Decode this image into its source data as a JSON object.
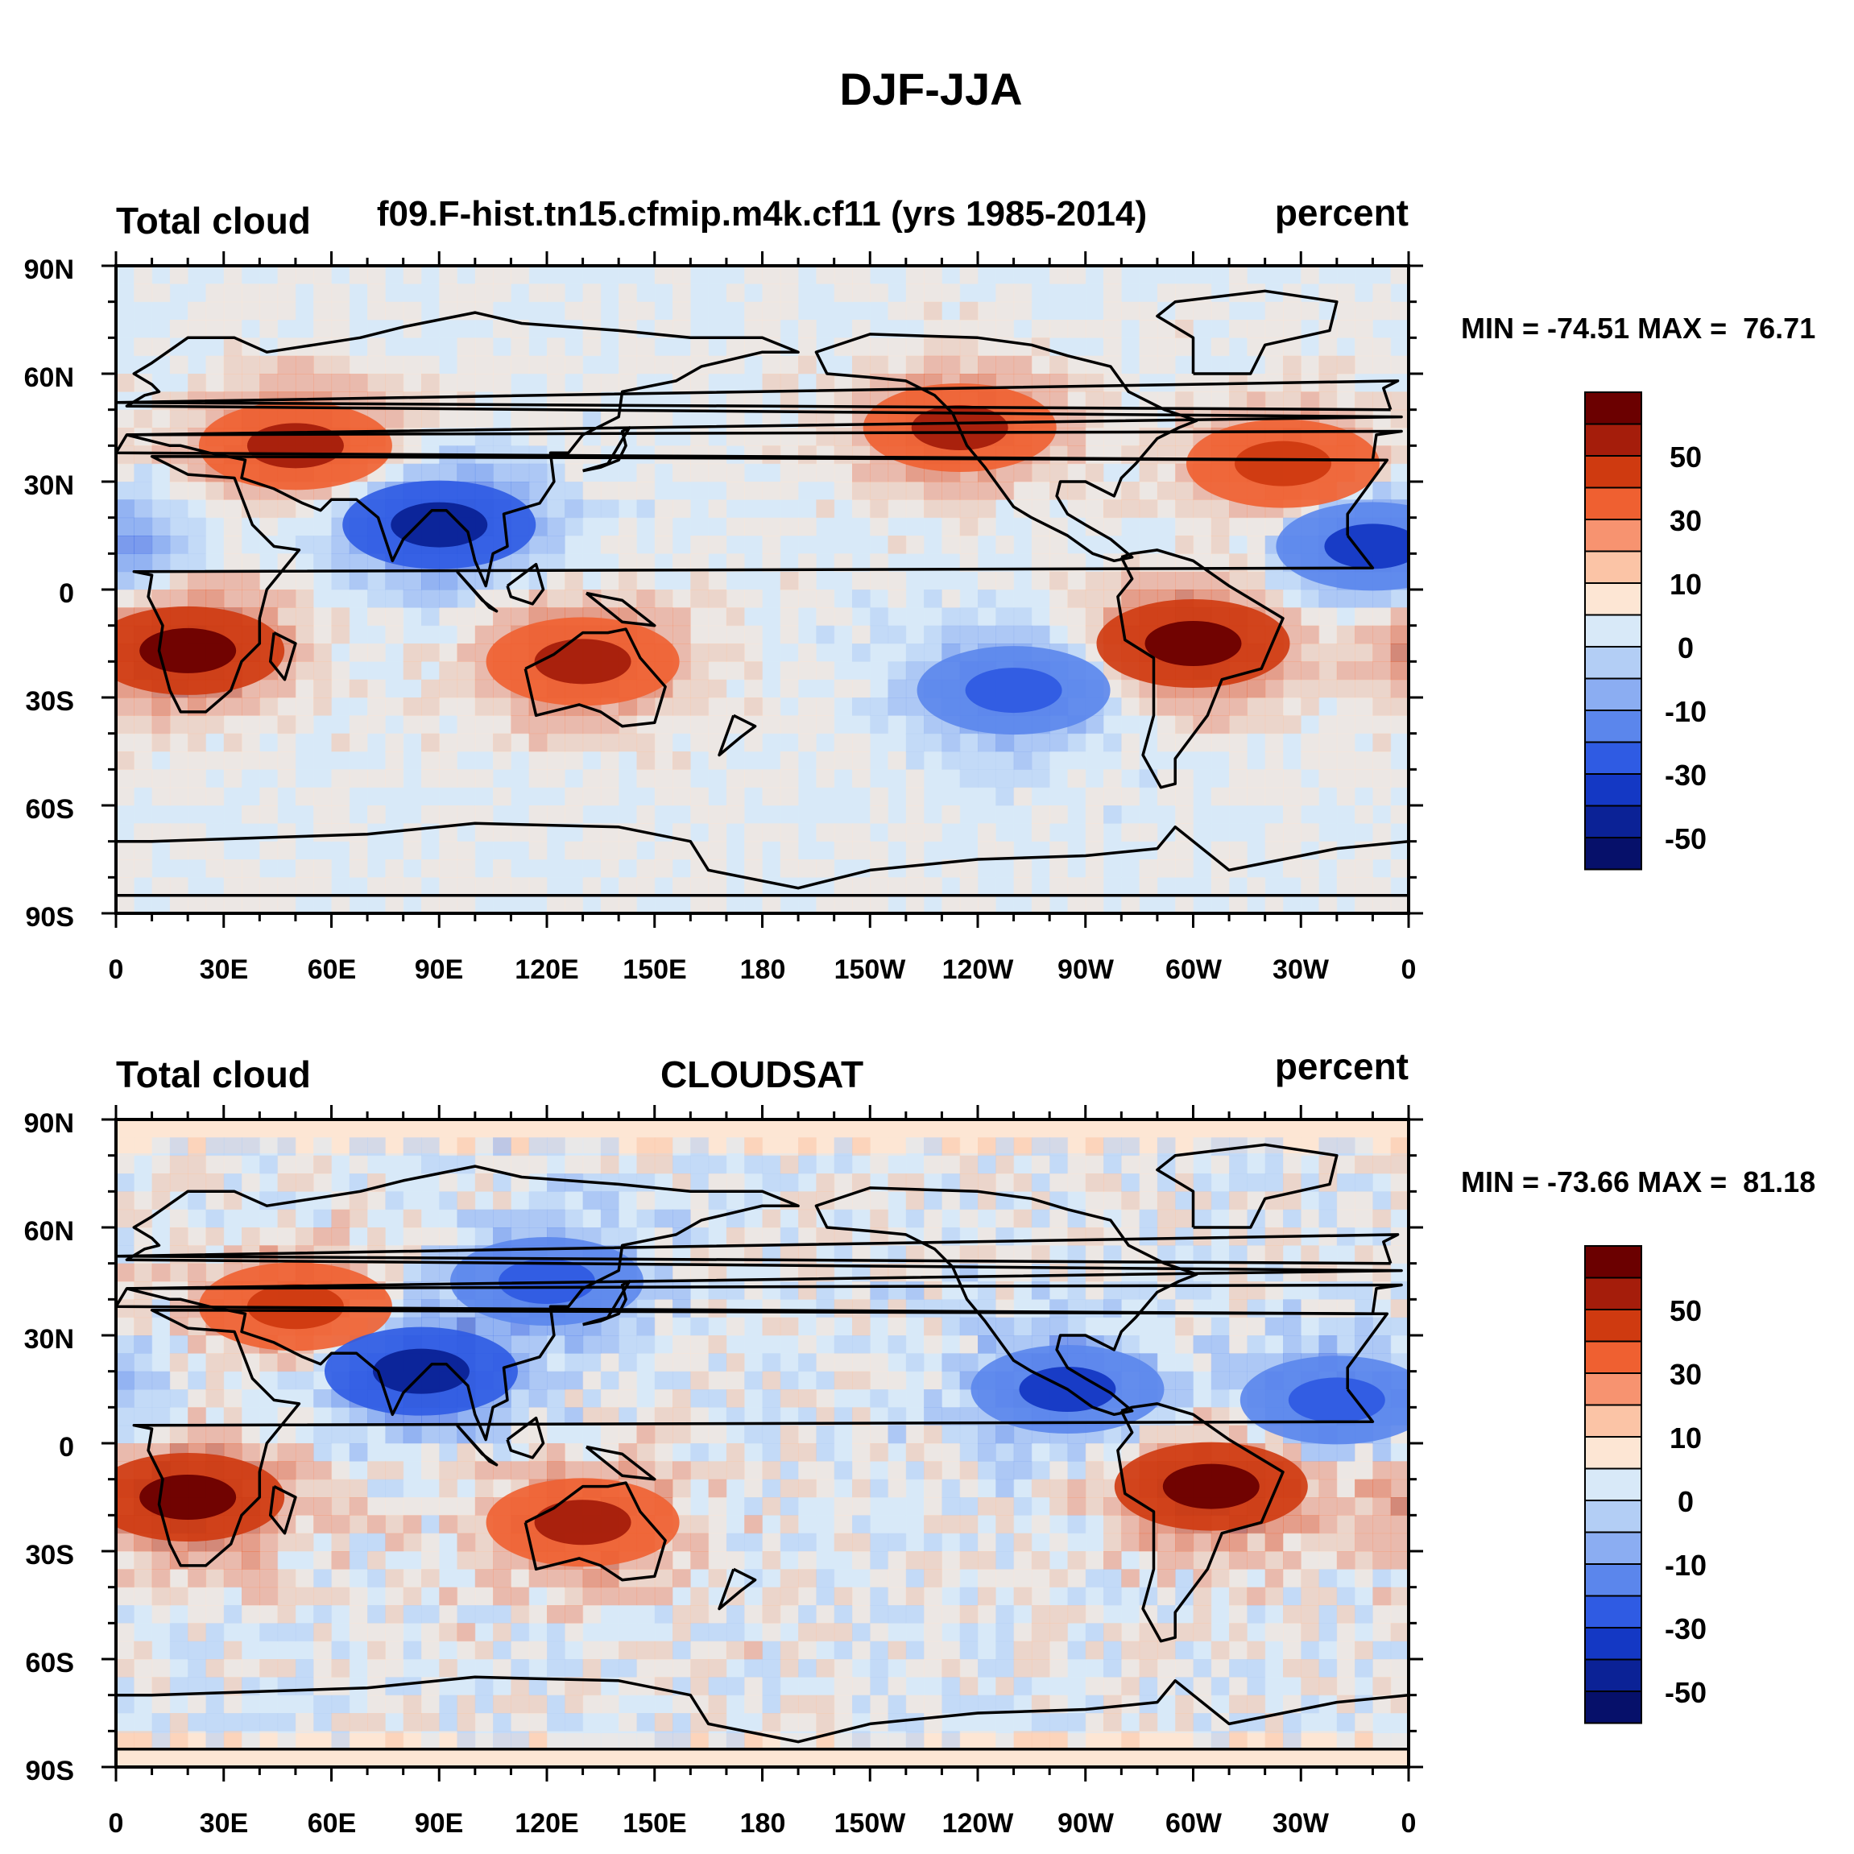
{
  "figure_title": "DJF-JJA",
  "panels": [
    {
      "left_title": "Total cloud",
      "center_title": "f09.F-hist.tn15.cfmip.m4k.cf11 (yrs 1985-2014)",
      "right_title": "percent",
      "stats": "MIN = -74.51 MAX =  76.71"
    },
    {
      "left_title": "Total cloud",
      "center_title": "CLOUDSAT",
      "right_title": "percent",
      "stats": "MIN = -73.66 MAX =  81.18"
    }
  ],
  "lat_labels": [
    "90N",
    "60N",
    "30N",
    "0",
    "30S",
    "60S",
    "90S"
  ],
  "lon_labels": [
    "0",
    "30E",
    "60E",
    "90E",
    "120E",
    "150E",
    "180",
    "150W",
    "120W",
    "90W",
    "60W",
    "30W",
    "0"
  ],
  "colorbar": {
    "labels": [
      "50",
      "30",
      "10",
      "0",
      "-10",
      "-30",
      "-50"
    ],
    "colors": [
      "#6b0000",
      "#a51d0b",
      "#cf3a10",
      "#ef6031",
      "#f79370",
      "#fbc4a6",
      "#fde6d4",
      "#d8e9f8",
      "#b3cef5",
      "#8badf2",
      "#5b86ec",
      "#2f5be3",
      "#1438c4",
      "#0b2296",
      "#06106a"
    ]
  },
  "chart_data": [
    {
      "type": "heatmap",
      "title": "Total cloud f09.F-hist.tn15.cfmip.m4k.cf11 (yrs 1985-2014)",
      "units": "percent",
      "season": "DJF-JJA",
      "min": -74.51,
      "max": 76.71,
      "lon_range": [
        0,
        360
      ],
      "lat_range": [
        -90,
        90
      ],
      "contour_levels": [
        -60,
        -50,
        -40,
        -30,
        -20,
        -10,
        -5,
        0,
        5,
        10,
        20,
        30,
        40,
        50,
        60
      ],
      "features": [
        {
          "lon": 50,
          "lat": 40,
          "value": 45
        },
        {
          "lon": 20,
          "lat": -17,
          "value": 55
        },
        {
          "lon": 130,
          "lat": -20,
          "value": 45
        },
        {
          "lon": 300,
          "lat": -15,
          "value": 50
        },
        {
          "lon": 235,
          "lat": 45,
          "value": 40
        },
        {
          "lon": 325,
          "lat": 35,
          "value": 35
        },
        {
          "lon": 90,
          "lat": 18,
          "value": -55
        },
        {
          "lon": 350,
          "lat": 12,
          "value": -45
        },
        {
          "lon": 250,
          "lat": -28,
          "value": -40
        }
      ]
    },
    {
      "type": "heatmap",
      "title": "Total cloud CLOUDSAT",
      "units": "percent",
      "season": "DJF-JJA",
      "min": -73.66,
      "max": 81.18,
      "lon_range": [
        0,
        360
      ],
      "lat_range": [
        -90,
        90
      ],
      "contour_levels": [
        -60,
        -50,
        -40,
        -30,
        -20,
        -10,
        -5,
        0,
        5,
        10,
        20,
        30,
        40,
        50,
        60
      ],
      "features": [
        {
          "lon": 20,
          "lat": -15,
          "value": 60
        },
        {
          "lon": 305,
          "lat": -12,
          "value": 55
        },
        {
          "lon": 130,
          "lat": -22,
          "value": 40
        },
        {
          "lon": 50,
          "lat": 38,
          "value": 35
        },
        {
          "lon": 85,
          "lat": 20,
          "value": -55
        },
        {
          "lon": 265,
          "lat": 15,
          "value": -45
        },
        {
          "lon": 120,
          "lat": 45,
          "value": -35
        },
        {
          "lon": 340,
          "lat": 12,
          "value": -40
        }
      ]
    }
  ]
}
